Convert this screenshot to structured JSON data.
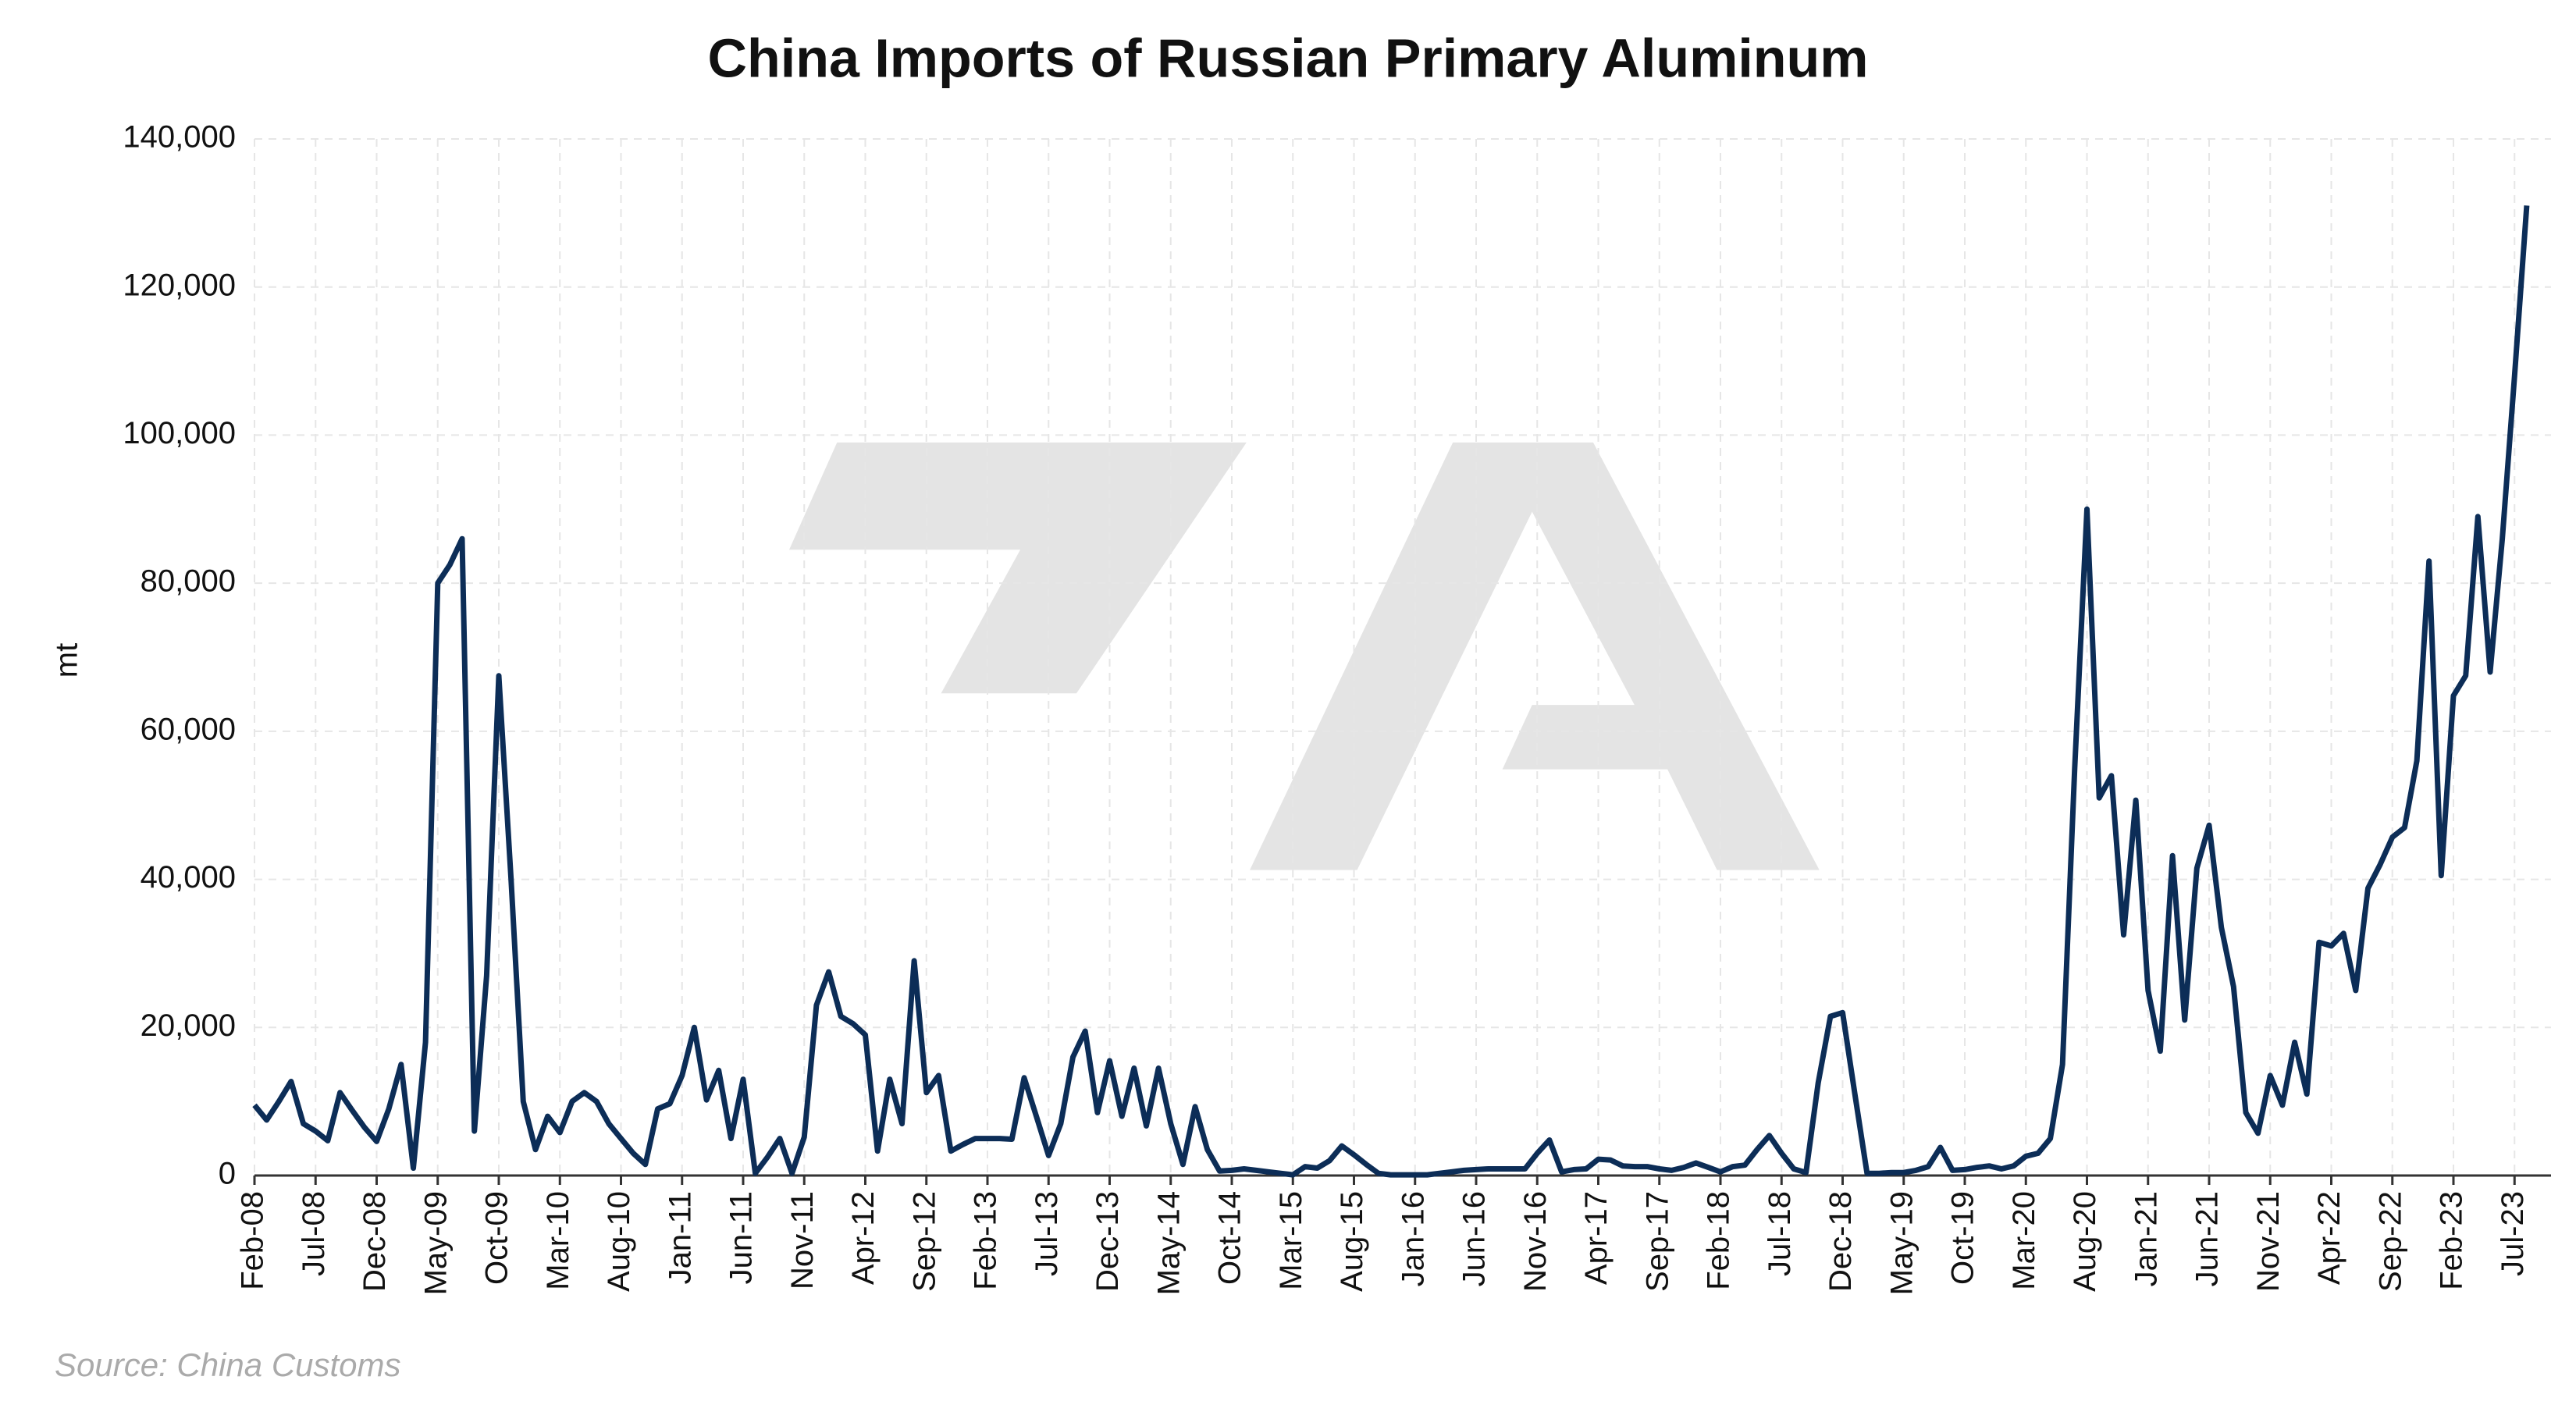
{
  "chart_data": {
    "type": "line",
    "title": "China Imports of Russian Primary Aluminum",
    "y_label": "mt",
    "source": "Source: China Customs",
    "color": "#0c2d57",
    "grid": true,
    "categories": [
      "Feb-08",
      null,
      null,
      null,
      null,
      "Jul-08",
      null,
      null,
      null,
      null,
      "Dec-08",
      null,
      null,
      null,
      null,
      "May-09",
      null,
      null,
      null,
      null,
      "Oct-09",
      null,
      null,
      null,
      null,
      "Mar-10",
      null,
      null,
      null,
      null,
      "Aug-10",
      null,
      null,
      null,
      null,
      "Jan-11",
      null,
      null,
      null,
      null,
      "Jun-11",
      null,
      null,
      null,
      null,
      "Nov-11",
      null,
      null,
      null,
      null,
      "Apr-12",
      null,
      null,
      null,
      null,
      "Sep-12",
      null,
      null,
      null,
      null,
      "Feb-13",
      null,
      null,
      null,
      null,
      "Jul-13",
      null,
      null,
      null,
      null,
      "Dec-13",
      null,
      null,
      null,
      null,
      "May-14",
      null,
      null,
      null,
      null,
      "Oct-14",
      null,
      null,
      null,
      null,
      "Mar-15",
      null,
      null,
      null,
      null,
      "Aug-15",
      null,
      null,
      null,
      null,
      "Jan-16",
      null,
      null,
      null,
      null,
      "Jun-16",
      null,
      null,
      null,
      null,
      "Nov-16",
      null,
      null,
      null,
      null,
      "Apr-17",
      null,
      null,
      null,
      null,
      "Sep-17",
      null,
      null,
      null,
      null,
      "Feb-18",
      null,
      null,
      null,
      null,
      "Jul-18",
      null,
      null,
      null,
      null,
      "Dec-18",
      null,
      null,
      null,
      null,
      "May-19",
      null,
      null,
      null,
      null,
      "Oct-19",
      null,
      null,
      null,
      null,
      "Mar-20",
      null,
      null,
      null,
      null,
      "Aug-20",
      null,
      null,
      null,
      null,
      "Jan-21",
      null,
      null,
      null,
      null,
      "Jun-21",
      null,
      null,
      null,
      null,
      "Nov-21",
      null,
      null,
      null,
      null,
      "Apr-22",
      null,
      null,
      null,
      null,
      "Sep-22",
      null,
      null,
      null,
      null,
      "Feb-23",
      null,
      null,
      null,
      null,
      "Jul-23",
      null
    ],
    "values": [
      9500,
      7500,
      10000,
      12700,
      7000,
      6000,
      4700,
      11200,
      8800,
      6500,
      4600,
      9000,
      15000,
      1000,
      18000,
      80000,
      82500,
      86000,
      6000,
      27000,
      67500,
      40000,
      10000,
      3500,
      8000,
      5800,
      10000,
      11200,
      10000,
      7000,
      5000,
      3000,
      1500,
      9000,
      9700,
      13500,
      20000,
      10200,
      14200,
      5000,
      13000,
      300,
      2500,
      5000,
      300,
      5200,
      23000,
      27500,
      21500,
      20500,
      19000,
      3300,
      13000,
      7000,
      29000,
      11200,
      13500,
      3300,
      4200,
      5000,
      5000,
      5000,
      4900,
      13200,
      8000,
      2700,
      7000,
      16000,
      19500,
      8500,
      15500,
      8000,
      14500,
      6700,
      14500,
      7000,
      1500,
      9300,
      3500,
      600,
      700,
      900,
      700,
      500,
      300,
      100,
      1200,
      1000,
      2000,
      4000,
      2800,
      1500,
      300,
      100,
      100,
      100,
      100,
      300,
      500,
      700,
      800,
      900,
      900,
      900,
      900,
      3000,
      4800,
      500,
      800,
      900,
      2200,
      2100,
      1300,
      1200,
      1200,
      900,
      700,
      1100,
      1700,
      1100,
      500,
      1200,
      1400,
      3500,
      5400,
      3000,
      900,
      400,
      12500,
      21500,
      22000,
      11000,
      300,
      300,
      400,
      400,
      700,
      1200,
      3800,
      700,
      800,
      1100,
      1300,
      900,
      1300,
      2600,
      3000,
      5000,
      15000,
      55000,
      90000,
      51000,
      54000,
      32500,
      50700,
      25000,
      16800,
      43200,
      21000,
      41500,
      47300,
      33500,
      25500,
      8500,
      5700,
      13500,
      9500,
      18000,
      11000,
      31500,
      31000,
      32700,
      25000,
      38800,
      42000,
      45700,
      47000,
      56000,
      83000,
      40500,
      64800,
      67500,
      89000,
      68000,
      86000,
      108000,
      131000
    ],
    "ylim": [
      0,
      140000
    ],
    "yticks": [
      0,
      {
        "value": 20000,
        "label": "20,000"
      },
      {
        "value": 40000,
        "label": "40,000"
      },
      {
        "value": 60000,
        "label": "60,000"
      },
      {
        "value": 80000,
        "label": "80,000"
      },
      {
        "value": 100000,
        "label": "100,000"
      },
      {
        "value": 120000,
        "label": "120,000"
      },
      {
        "value": 140000,
        "label": "140,000"
      }
    ]
  }
}
